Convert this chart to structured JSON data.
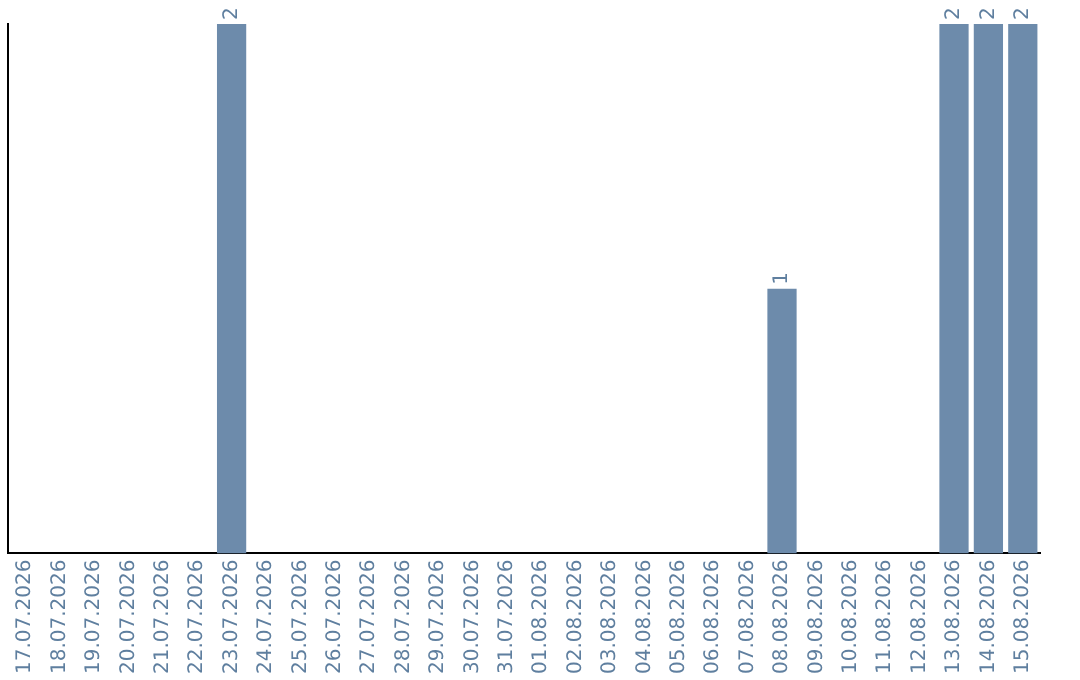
{
  "chart_data": {
    "type": "bar",
    "categories": [
      "17.07.2026",
      "18.07.2026",
      "19.07.2026",
      "20.07.2026",
      "21.07.2026",
      "22.07.2026",
      "23.07.2026",
      "24.07.2026",
      "25.07.2026",
      "26.07.2026",
      "27.07.2026",
      "28.07.2026",
      "29.07.2026",
      "30.07.2026",
      "31.07.2026",
      "01.08.2026",
      "02.08.2026",
      "03.08.2026",
      "04.08.2026",
      "05.08.2026",
      "06.08.2026",
      "07.08.2026",
      "08.08.2026",
      "09.08.2026",
      "10.08.2026",
      "11.08.2026",
      "12.08.2026",
      "13.08.2026",
      "14.08.2026",
      "15.08.2026"
    ],
    "values": [
      0,
      0,
      0,
      0,
      0,
      0,
      2,
      0,
      0,
      0,
      0,
      0,
      0,
      0,
      0,
      0,
      0,
      0,
      0,
      0,
      0,
      0,
      1,
      0,
      0,
      0,
      0,
      2,
      2,
      2
    ],
    "value_labels": [
      null,
      null,
      null,
      null,
      null,
      null,
      "2",
      null,
      null,
      null,
      null,
      null,
      null,
      null,
      null,
      null,
      null,
      null,
      null,
      null,
      null,
      null,
      "1",
      null,
      null,
      null,
      null,
      "2",
      "2",
      "2"
    ],
    "color": "#6d8bab",
    "grid": false,
    "legend": false,
    "tick_labels": "x"
  }
}
